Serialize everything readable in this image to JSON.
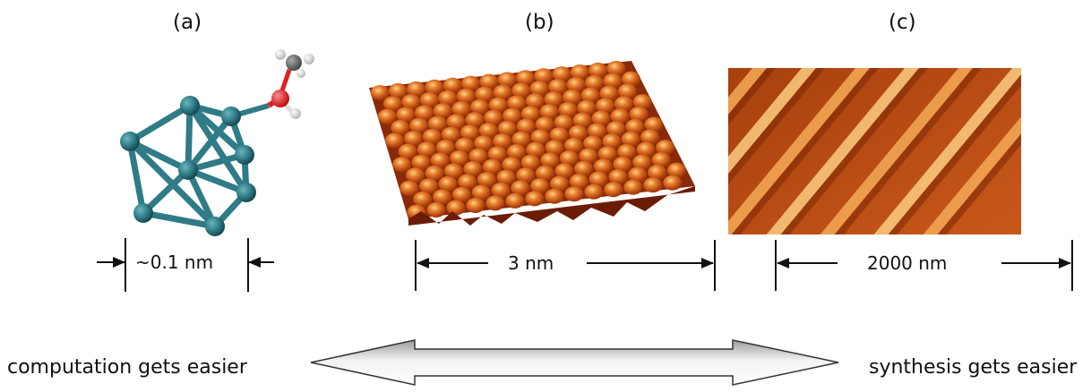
{
  "panels": [
    {
      "label": "(a)",
      "scale": "~0.1 nm"
    },
    {
      "label": "(b)",
      "scale": "3 nm"
    },
    {
      "label": "(c)",
      "scale": "2000 nm"
    }
  ],
  "arrow": {
    "left_text": "computation gets easier",
    "right_text": "synthesis gets easier"
  },
  "colors": {
    "cluster": "#2f7b86",
    "oxygen": "#e02020",
    "hydrogen": "#e8e8e8",
    "carbon": "#707070",
    "afm_dark": "#8a2a08",
    "afm_mid": "#d2601c",
    "afm_light": "#f6b060"
  }
}
